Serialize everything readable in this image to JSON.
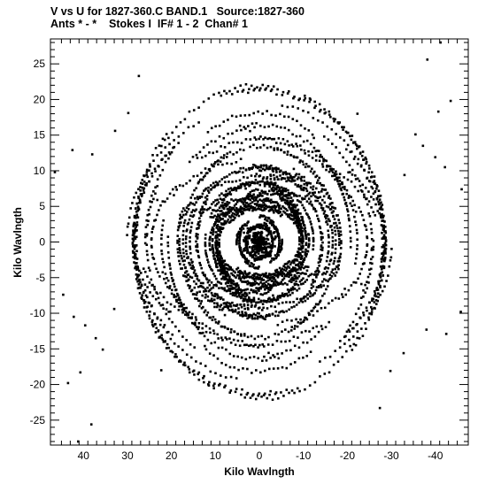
{
  "chart_data": {
    "type": "scatter",
    "title_line1": "V vs U for 1827-360.C BAND.1   Source:1827-360",
    "title_line2": "Ants * - *    Stokes I  IF# 1 - 2  Chan# 1",
    "xlabel": "Kilo Wavlngth",
    "ylabel": "Kilo Wavlngth",
    "xlim": [
      47.5,
      -47.5
    ],
    "ylim": [
      -28.5,
      28.5
    ],
    "x_ticks": [
      40,
      30,
      20,
      10,
      0,
      -10,
      -20,
      -30,
      -40
    ],
    "x_tick_labels": [
      "40",
      "30",
      "20",
      "10",
      "0",
      "-10",
      "-20",
      "-30",
      "-40"
    ],
    "y_ticks": [
      -25,
      -20,
      -15,
      -10,
      -5,
      0,
      5,
      10,
      15,
      20,
      25
    ],
    "y_tick_labels": [
      "-25",
      "-20",
      "-15",
      "-10",
      "-5",
      "0",
      "5",
      "10",
      "15",
      "20",
      "25"
    ],
    "grid": false,
    "legend": "none",
    "marker_color": "#000000",
    "tracks_description_note": "",
    "series": [
      {
        "points": [
          [
            46.5,
            9.8
          ],
          [
            42.5,
            12.9
          ],
          [
            38.0,
            12.3
          ],
          [
            32.8,
            15.6
          ],
          [
            29.8,
            18.1
          ],
          [
            44.6,
            -7.4
          ],
          [
            42.2,
            -10.5
          ],
          [
            39.6,
            -11.7
          ],
          [
            37.2,
            -13.5
          ],
          [
            35.6,
            -15.1
          ],
          [
            -46.0,
            7.4
          ],
          [
            -42.2,
            10.5
          ],
          [
            -40.0,
            11.9
          ],
          [
            -37.2,
            13.5
          ],
          [
            -35.5,
            15.1
          ],
          [
            -45.8,
            -9.8
          ],
          [
            -42.5,
            -12.9
          ],
          [
            -38.0,
            -12.3
          ],
          [
            -32.8,
            -15.6
          ],
          [
            -29.8,
            -18.1
          ],
          [
            -41.2,
            28.0
          ],
          [
            -38.2,
            25.6
          ],
          [
            -40.7,
            18.3
          ],
          [
            -43.5,
            19.8
          ],
          [
            41.2,
            -28.0
          ],
          [
            38.2,
            -25.6
          ],
          [
            40.7,
            -18.3
          ],
          [
            43.5,
            -19.8
          ],
          [
            -22.3,
            18.0
          ],
          [
            22.3,
            -18.0
          ],
          [
            27.4,
            23.3
          ],
          [
            -27.4,
            -23.3
          ],
          [
            -9.8,
            6.0
          ],
          [
            9.8,
            -6.0
          ],
          [
            -6.0,
            9.8
          ],
          [
            6.0,
            -9.8
          ],
          [
            -3.1,
            -7.5
          ],
          [
            3.1,
            7.5
          ],
          [
            -18.0,
            -3.8
          ],
          [
            18.0,
            3.8
          ],
          [
            -15.2,
            2.8
          ],
          [
            15.2,
            -2.8
          ],
          [
            -12.4,
            14.6
          ],
          [
            12.4,
            -14.6
          ],
          [
            -20.6,
            9.8
          ],
          [
            20.6,
            -9.8
          ],
          [
            -23.2,
            -5.9
          ],
          [
            23.2,
            5.9
          ],
          [
            -14.1,
            -11.8
          ],
          [
            14.1,
            11.8
          ],
          [
            -33.0,
            9.4
          ],
          [
            33.0,
            -9.4
          ],
          [
            -1.0,
            0.5
          ],
          [
            1.0,
            -0.5
          ],
          [
            -2.0,
            1.5
          ],
          [
            2.0,
            -1.5
          ],
          [
            -0.5,
            -1.2
          ],
          [
            0.5,
            1.2
          ],
          [
            -2.6,
            -0.8
          ],
          [
            2.6,
            0.8
          ]
        ]
      }
    ]
  }
}
